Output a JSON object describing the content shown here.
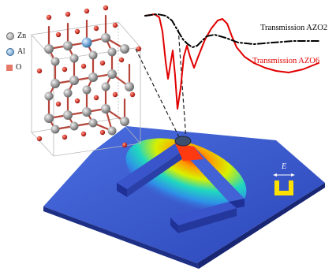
{
  "legend": {
    "items": [
      {
        "symbol": "Zn",
        "label": "Zn",
        "color": "#9a9a9a"
      },
      {
        "symbol": "Al",
        "label": "Al",
        "color": "#6ea3d4"
      },
      {
        "symbol": "O",
        "label": "O",
        "color": "#e57a6a"
      }
    ]
  },
  "curves": {
    "azo2": {
      "label": "Transmission AZO2",
      "color": "#000000"
    },
    "azo6": {
      "label": "Transmission AZO6",
      "color": "#e00000"
    }
  },
  "field": {
    "label": "E"
  },
  "colors": {
    "substrate": "#3f5fd0",
    "resonator": "#2a3fa8",
    "hotspot": "#ff2a00",
    "icon": "#ffe100"
  }
}
